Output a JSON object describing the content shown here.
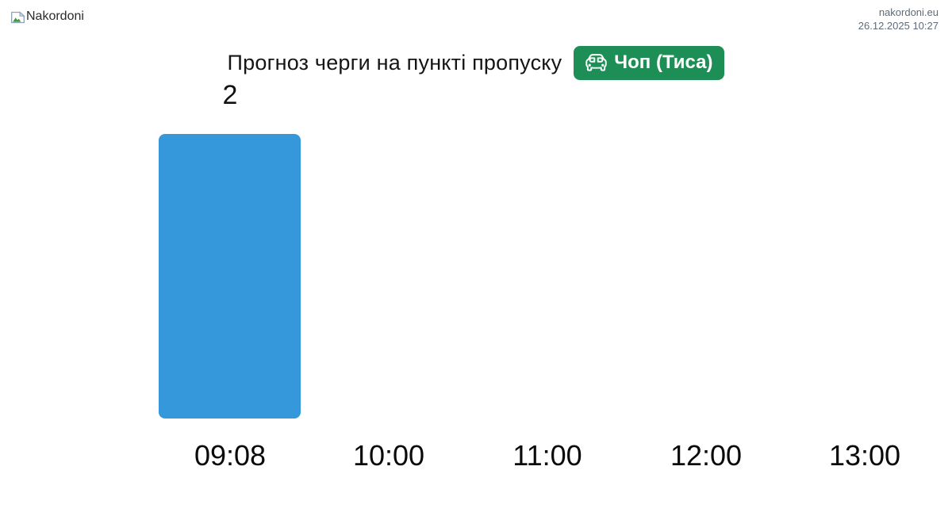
{
  "header": {
    "brand": "Nakordoni",
    "site": "nakordoni.eu",
    "timestamp": "26.12.2025 10:27"
  },
  "title": {
    "text": "Прогноз черги на пункті пропуску",
    "badge": {
      "label": "Чоп (Тиса)",
      "color": "#1d8e55",
      "icon": "car-front-icon"
    }
  },
  "icons": {
    "brand": "broken-image-icon",
    "badge": "car-front-icon"
  },
  "colors": {
    "bar": "#3498db",
    "badge_green": "#1d8e55",
    "meta_text": "#5e6b7a"
  },
  "chart_data": {
    "type": "bar",
    "categories": [
      "09:08",
      "10:00",
      "11:00",
      "12:00",
      "13:00"
    ],
    "values": [
      2,
      0,
      0,
      0,
      0
    ],
    "value_labels": [
      "2",
      "",
      "",
      "",
      ""
    ],
    "title": "Прогноз черги на пункті пропуску",
    "xlabel": "",
    "ylabel": "",
    "ylim": [
      0,
      2
    ],
    "grid": false,
    "legend": false,
    "bar_color": "#3498db"
  }
}
